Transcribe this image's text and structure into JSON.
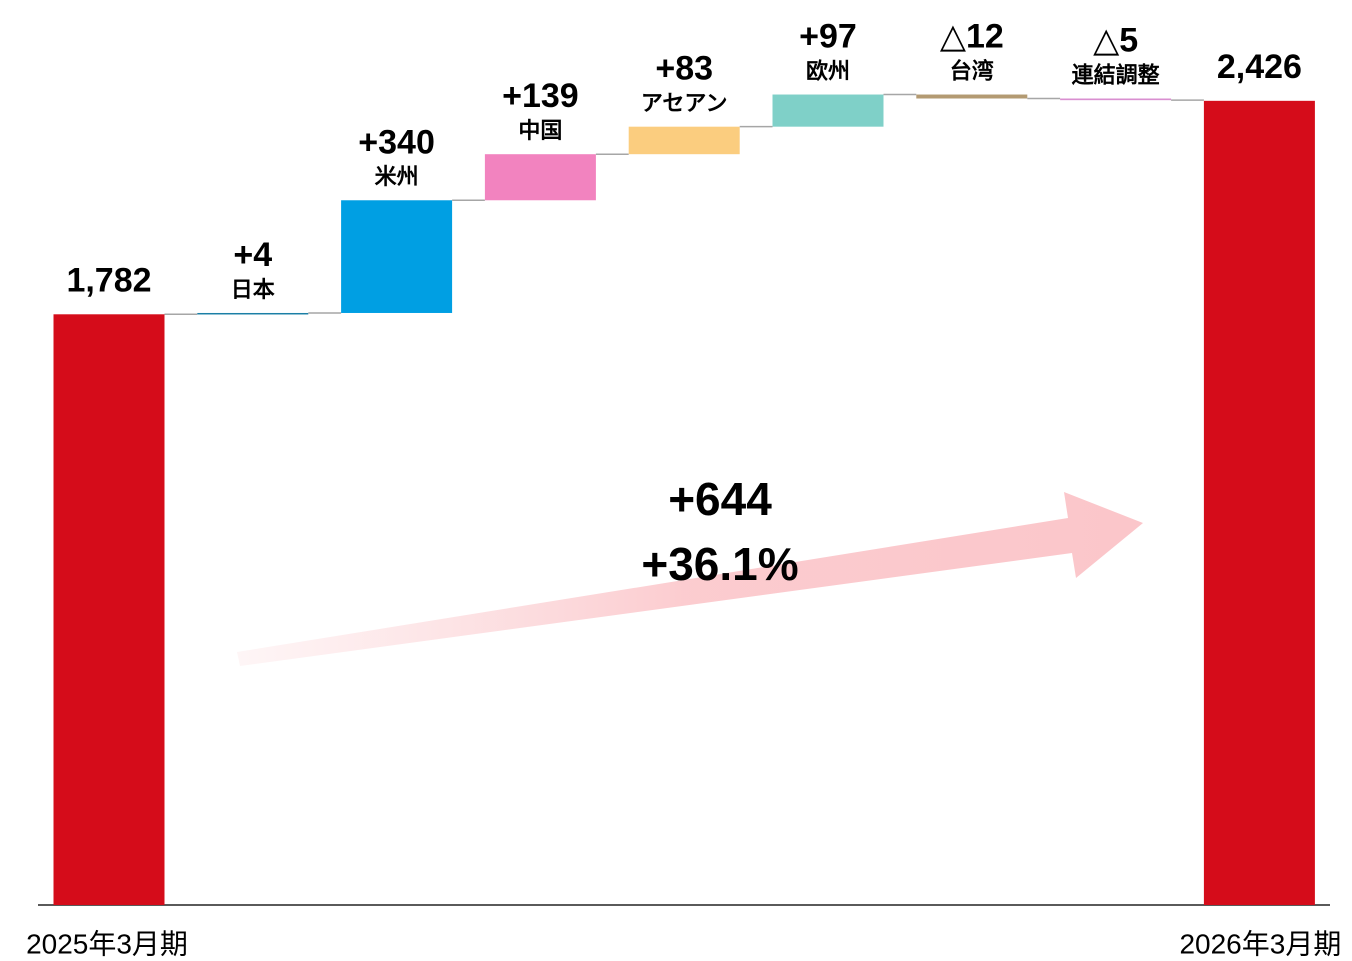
{
  "chart_data": {
    "type": "waterfall",
    "categories": [
      "2025年3月期",
      "日本",
      "米州",
      "中国",
      "アセアン",
      "欧州",
      "台湾",
      "連結調整",
      "2026年3月期"
    ],
    "measure": [
      "absolute",
      "relative",
      "relative",
      "relative",
      "relative",
      "relative",
      "relative",
      "relative",
      "total"
    ],
    "values": [
      1782,
      4,
      340,
      139,
      83,
      97,
      -12,
      -5,
      2426
    ],
    "value_labels": [
      "1,782",
      "+4",
      "+340",
      "+139",
      "+83",
      "+97",
      "△12",
      "△5",
      "2,426"
    ],
    "colors": [
      "#d50c1a",
      "#1b7fa6",
      "#009fe3",
      "#f283bf",
      "#fbcd7f",
      "#7fd0c8",
      "#b39a72",
      "#d98fd0",
      "#d50c1a"
    ],
    "ylim": [
      0,
      2700
    ],
    "annotations": [
      "+644",
      "+36.1%"
    ]
  }
}
